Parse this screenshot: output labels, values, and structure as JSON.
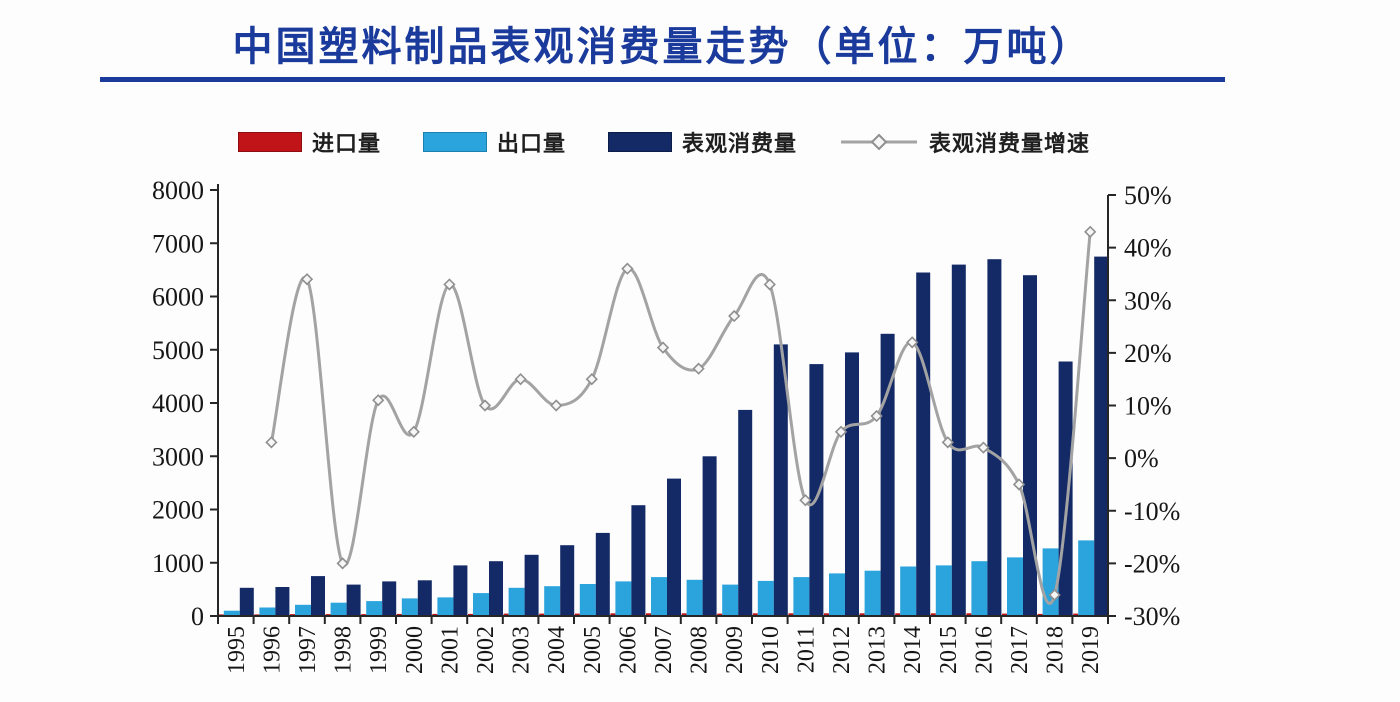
{
  "title": {
    "text": "中国塑料制品表观消费量走势（单位：万吨）"
  },
  "legend": {
    "items": [
      {
        "label": "进口量",
        "color": "#c01418",
        "type": "bar"
      },
      {
        "label": "出口量",
        "color": "#2ba3dc",
        "type": "bar"
      },
      {
        "label": "表观消费量",
        "color": "#132a66",
        "type": "bar"
      },
      {
        "label": "表观消费量增速",
        "color": "#a3a3a3",
        "type": "line"
      }
    ]
  },
  "colors": {
    "title_blue": "#1a3a9c",
    "imports_red": "#c01418",
    "exports_lightblue": "#2ba3dc",
    "consumption_navy": "#132a66",
    "growth_gray": "#a3a3a3",
    "axis": "#262626",
    "tick_text": "#161616"
  },
  "chart_data": {
    "type": "bar",
    "title": "中国塑料制品表观消费量走势（单位：万吨）",
    "xlabel": "",
    "ylabel_left": "万吨",
    "ylabel_right": "%",
    "grid": false,
    "legend_position": "top",
    "categories": [
      "1995",
      "1996",
      "1997",
      "1998",
      "1999",
      "2000",
      "2001",
      "2002",
      "2003",
      "2004",
      "2005",
      "2006",
      "2007",
      "2008",
      "2009",
      "2010",
      "2011",
      "2012",
      "2013",
      "2014",
      "2015",
      "2016",
      "2017",
      "2018",
      "2019"
    ],
    "left_axis": {
      "min": 0,
      "max": 8000,
      "step": 1000,
      "ticks": [
        "0",
        "1000",
        "2000",
        "3000",
        "4000",
        "5000",
        "6000",
        "7000",
        "8000"
      ]
    },
    "right_axis": {
      "min": -30,
      "max": 50,
      "step": 10,
      "ticks": [
        "-30%",
        "-20%",
        "-10%",
        "0%",
        "10%",
        "20%",
        "30%",
        "40%",
        "50%"
      ]
    },
    "series": [
      {
        "name": "进口量",
        "type": "bar",
        "axis": "left",
        "color": "#c01418",
        "values": [
          30,
          30,
          35,
          35,
          35,
          40,
          40,
          40,
          45,
          45,
          45,
          50,
          50,
          50,
          45,
          50,
          50,
          50,
          50,
          50,
          50,
          50,
          45,
          40,
          45
        ]
      },
      {
        "name": "出口量",
        "type": "bar",
        "axis": "left",
        "color": "#2ba3dc",
        "values": [
          100,
          160,
          210,
          250,
          280,
          330,
          350,
          430,
          530,
          560,
          600,
          650,
          730,
          680,
          590,
          660,
          730,
          800,
          850,
          930,
          950,
          1030,
          1100,
          1270,
          1420
        ]
      },
      {
        "name": "表观消费量",
        "type": "bar",
        "axis": "left",
        "color": "#132a66",
        "values": [
          530,
          545,
          750,
          590,
          650,
          670,
          950,
          1030,
          1150,
          1330,
          1560,
          2080,
          2580,
          3000,
          3870,
          5100,
          4730,
          4950,
          5300,
          6450,
          6600,
          6700,
          6400,
          4780,
          6750
        ]
      },
      {
        "name": "表观消费量增速",
        "type": "line",
        "axis": "right",
        "color": "#a3a3a3",
        "marker": "open-diamond",
        "values": [
          null,
          3,
          34,
          -20,
          11,
          5,
          33,
          10,
          15,
          10,
          15,
          36,
          21,
          17,
          27,
          33,
          -8,
          5,
          8,
          22,
          3,
          2,
          -5,
          -26,
          43
        ]
      }
    ]
  }
}
